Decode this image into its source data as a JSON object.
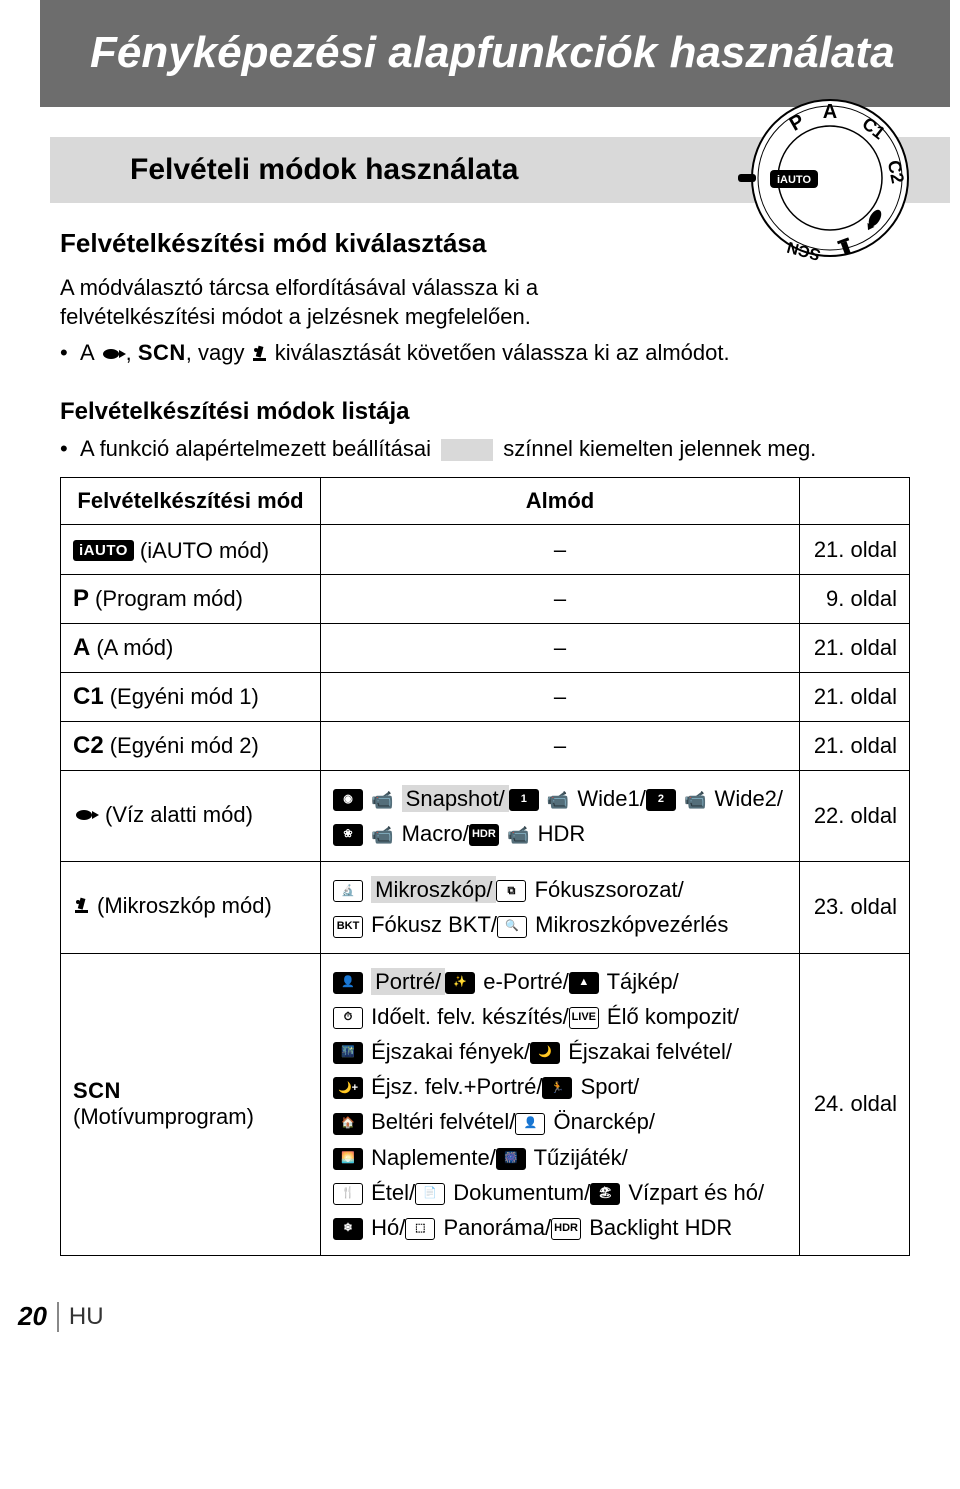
{
  "title": "Fényképezési alapfunkciók használata",
  "section": "Felvételi módok használata",
  "select_heading": "Felvételkészítési mód kiválasztása",
  "intro_para": "A módválasztó tárcsa elfordításával válassza ki a felvételkészítési módot a jelzésnek megfelelően.",
  "bullet1_pre": "A ",
  "bullet1_mid1": ", ",
  "bullet1_scn": "SCN",
  "bullet1_mid2": ", vagy ",
  "bullet1_post": " kiválasztását követően válassza ki az almódot.",
  "list_heading": "Felvételkészítési módok listája",
  "list_bullet_pre": "A funkció alapértelmezett beállításai",
  "list_bullet_post": "színnel kiemelten jelennek meg.",
  "table": {
    "header_mode": "Felvételkészítési mód",
    "header_sub": "Almód",
    "rows": [
      {
        "icon_type": "badge",
        "icon_text": "iAUTO",
        "label": "(iAUTO mód)",
        "sub": "–",
        "page": "21. oldal"
      },
      {
        "icon_type": "letter",
        "icon_text": "P",
        "label": "(Program mód)",
        "sub": "–",
        "page": "9. oldal"
      },
      {
        "icon_type": "letter",
        "icon_text": "A",
        "label": "(A mód)",
        "sub": "–",
        "page": "21. oldal"
      },
      {
        "icon_type": "letter",
        "icon_text": "C1",
        "label": "(Egyéni mód 1)",
        "sub": "–",
        "page": "21. oldal"
      },
      {
        "icon_type": "letter",
        "icon_text": "C2",
        "label": "(Egyéni mód 2)",
        "sub": "–",
        "page": "21. oldal"
      }
    ],
    "row_water": {
      "label": "(Víz alatti mód)",
      "items": [
        "Snapshot/",
        "Wide1/",
        "Wide2/",
        "Macro/",
        "HDR"
      ],
      "page": "22. oldal"
    },
    "row_micro": {
      "label": "(Mikroszkóp mód)",
      "items": [
        "Mikroszkóp/",
        "Fókuszsorozat/",
        "Fókusz BKT/",
        "Mikroszkópvezérlés"
      ],
      "page": "23. oldal"
    },
    "row_scn": {
      "icon_text": "SCN",
      "label": "(Motívumprogram)",
      "items": [
        "Portré/",
        "e-Portré/",
        "Tájkép/",
        "Időelt. felv. készítés/",
        "Élő kompozit/",
        "Éjszakai fények/",
        "Éjszakai felvétel/",
        "Éjsz. felv.+Portré/",
        "Sport/",
        "Beltéri felvétel/",
        "Önarckép/",
        "Naplemente/",
        "Tűzijáték/",
        "Étel/",
        "Dokumentum/",
        "Vízpart és hó/",
        "Hó/",
        "Panoráma/",
        "Backlight HDR"
      ],
      "page": "24. oldal"
    }
  },
  "footer": {
    "page_num": "20",
    "lang": "HU"
  },
  "colors": {
    "banner_bg": "#6d6d6d",
    "section_bg": "#d9d9d9",
    "highlight": "#d9d9d9",
    "text": "#000000",
    "page_bg": "#ffffff"
  }
}
